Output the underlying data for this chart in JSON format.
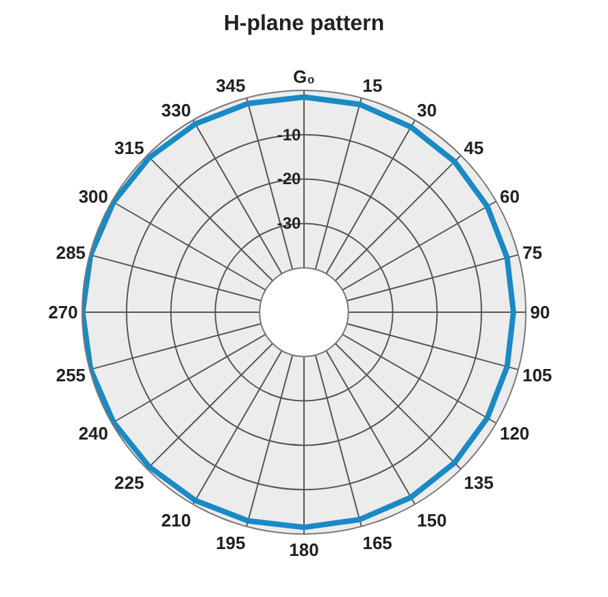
{
  "chart_data": {
    "type": "radar",
    "title": "H-plane pattern",
    "categories": [
      "G₀",
      "15",
      "30",
      "45",
      "60",
      "75",
      "90",
      "105",
      "120",
      "135",
      "150",
      "165",
      "180",
      "195",
      "210",
      "225",
      "240",
      "255",
      "270",
      "285",
      "300",
      "315",
      "330",
      "345"
    ],
    "series": [
      {
        "color": "#1a8ac4",
        "values": [
          -1.5,
          -1.5,
          -1.8,
          -2,
          -2.3,
          -2.6,
          -2.8,
          -2.6,
          -2.3,
          -2,
          -1.8,
          -1.6,
          -1.5,
          -1.3,
          -1,
          -0.7,
          -0.4,
          -0.2,
          -0.1,
          -0.2,
          -0.4,
          -0.7,
          -1,
          -1.3
        ]
      }
    ],
    "ylim": [
      -50,
      0
    ],
    "yticks": [
      -10,
      -20,
      -30
    ],
    "grid": true,
    "legend": false,
    "marker": "none",
    "line_style": "solid"
  }
}
